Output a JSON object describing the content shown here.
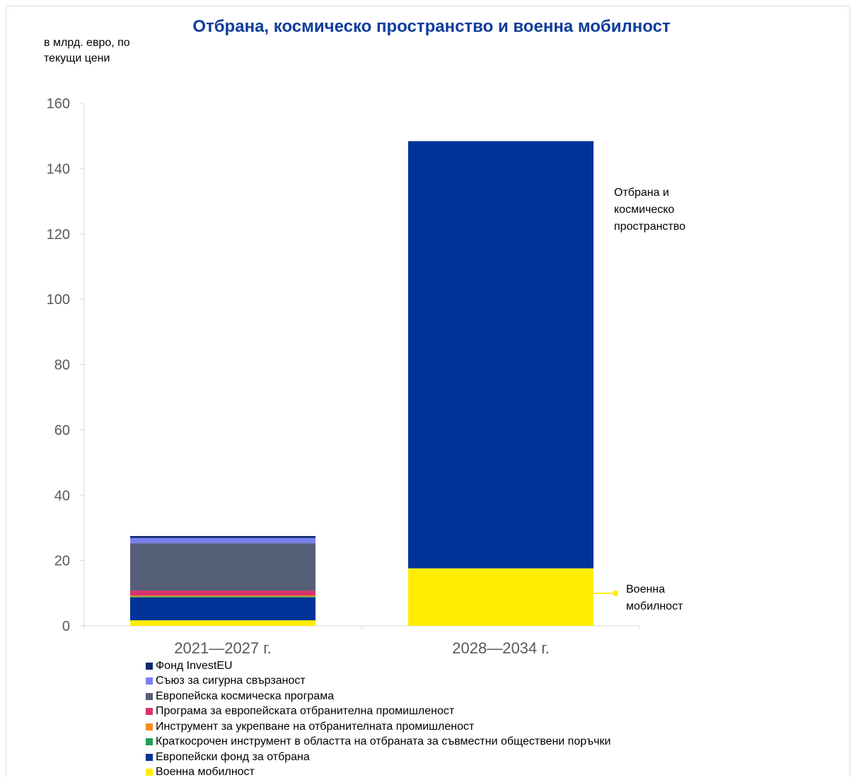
{
  "chart_data": {
    "type": "bar",
    "stacked": true,
    "title": "Отбрана, космическо пространство и военна мобилност",
    "ylabel": "в млрд. евро, по текущи цени",
    "ylim": [
      0,
      160
    ],
    "yticks": [
      0,
      20,
      40,
      60,
      80,
      100,
      120,
      140,
      160
    ],
    "grid": false,
    "legend_position": "bottom",
    "categories": [
      "2021—2027 г.",
      "2028—2034 г."
    ],
    "series": [
      {
        "name": "Военна мобилност",
        "color": "#ffed00",
        "values": [
          1.7,
          17.6
        ]
      },
      {
        "name": "Европейски фонд за отбрана",
        "color": "#003399",
        "values": [
          7.0,
          0
        ]
      },
      {
        "name": "Краткосрочен инструмент в областта на отбраната за съвместни обществени поръчки",
        "color": "#21a152",
        "values": [
          0.3,
          0
        ]
      },
      {
        "name": "Инструмент за укрепване на отбранителната промишленост",
        "color": "#f7901e",
        "values": [
          0.3,
          0
        ]
      },
      {
        "name": "Програма за европейската отбранителна промишленост",
        "color": "#d6336c",
        "values": [
          1.5,
          0
        ]
      },
      {
        "name": "Европейска космическа програма",
        "color": "#565f78",
        "values": [
          14.5,
          0
        ]
      },
      {
        "name": "Съюз за сигурна свързаност",
        "color": "#7b80f2",
        "values": [
          1.6,
          0
        ]
      },
      {
        "name": "Фонд InvestEU",
        "color": "#0a2a6b",
        "values": [
          0.6,
          0
        ]
      },
      {
        "name": "",
        "color": "#003399",
        "values": [
          0,
          130.8
        ]
      }
    ],
    "legend": [
      {
        "label": "Фонд InvestEU",
        "color": "#0a2a6b"
      },
      {
        "label": "Съюз за сигурна свързаност",
        "color": "#7b80f2"
      },
      {
        "label": "Европейска космическа програма",
        "color": "#565f78"
      },
      {
        "label": "Програма за европейската отбранителна промишленост",
        "color": "#d6336c"
      },
      {
        "label": "Инструмент за укрепване на отбранителната промишленост",
        "color": "#f7901e"
      },
      {
        "label": "Краткосрочен инструмент в областта на отбраната за съвместни обществени поръчки",
        "color": "#21a152"
      },
      {
        "label": "Европейски фонд за отбрана",
        "color": "#003399"
      },
      {
        "label": "Военна мобилност",
        "color": "#ffed00"
      }
    ],
    "annotations": [
      {
        "lines": [
          "Отбрана и",
          "космическо",
          "пространство"
        ]
      },
      {
        "lines": [
          "Военна",
          "мобилност"
        ],
        "leader_color": "#ffed00"
      }
    ]
  },
  "header": {
    "title": "Отбрана, космическо пространство и военна мобилност",
    "unit_line1": "в млрд. евро, по",
    "unit_line2": "текущи цени"
  }
}
